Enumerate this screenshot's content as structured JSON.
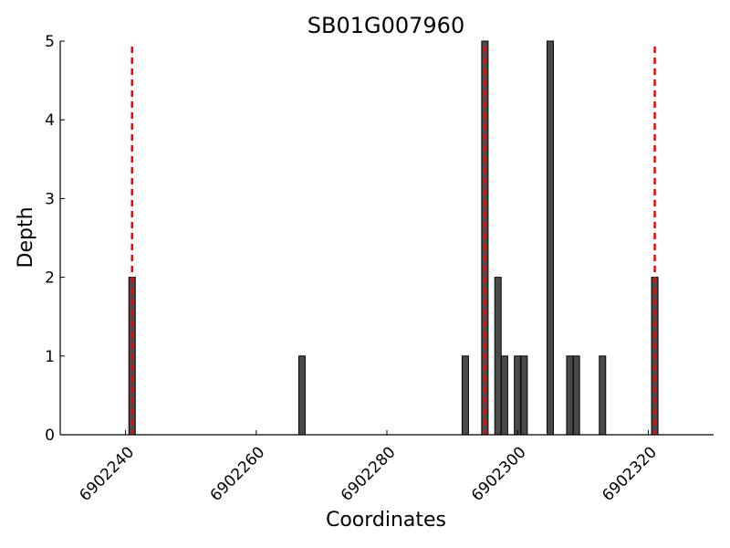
{
  "chart_data": {
    "type": "bar",
    "title": "SB01G007960",
    "xlabel": "Coordinates",
    "ylabel": "Depth",
    "xlim": [
      6902230,
      6902330
    ],
    "ylim": [
      0,
      5
    ],
    "xticks": [
      "6902240",
      "6902260",
      "6902280",
      "6902300",
      "6902320"
    ],
    "yticks": [
      "0",
      "1",
      "2",
      "3",
      "4",
      "5"
    ],
    "grid": false,
    "bar_color": "#4a4a4a",
    "bar_edge_color": "#000000",
    "marker_color": "#ff0000",
    "bars": [
      {
        "x": 6902241,
        "y": 2
      },
      {
        "x": 6902267,
        "y": 1
      },
      {
        "x": 6902292,
        "y": 1
      },
      {
        "x": 6902295,
        "y": 5
      },
      {
        "x": 6902297,
        "y": 2
      },
      {
        "x": 6902298,
        "y": 1
      },
      {
        "x": 6902300,
        "y": 1
      },
      {
        "x": 6902301,
        "y": 1
      },
      {
        "x": 6902305,
        "y": 5
      },
      {
        "x": 6902308,
        "y": 1
      },
      {
        "x": 6902309,
        "y": 1
      },
      {
        "x": 6902313,
        "y": 1
      },
      {
        "x": 6902321,
        "y": 2
      }
    ],
    "vertical_lines": [
      6902241,
      6902295,
      6902321
    ]
  }
}
